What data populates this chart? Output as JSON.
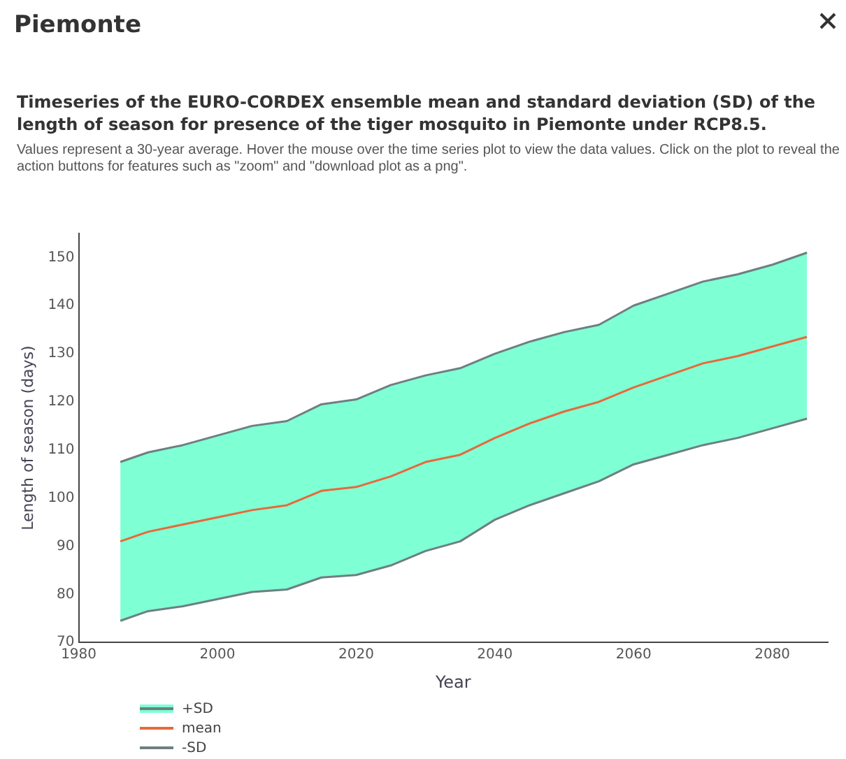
{
  "chart_data": {
    "type": "line",
    "title": "Timeseries of the EURO-CORDEX ensemble mean and standard deviation (SD) of the length of season for presence of the tiger mosquito in Piemonte under RCP8.5.",
    "subtitle": "Values represent a 30-year average. Hover the mouse over the time series plot to view the data values. Click on the plot to reveal the action buttons for features such as \"zoom\" and \"download plot as a png\".",
    "annotations": [
      "Piemonte"
    ],
    "xlabel": "Year",
    "ylabel": "Length of season (days)",
    "x": [
      1986,
      1990,
      1995,
      2000,
      2005,
      2010,
      2015,
      2020,
      2025,
      2030,
      2035,
      2040,
      2045,
      2050,
      2055,
      2060,
      2065,
      2070,
      2075,
      2080,
      2085
    ],
    "series": [
      {
        "name": "+SD",
        "type": "area",
        "color": "#7fffd4",
        "values": [
          107.5,
          109.5,
          111,
          113,
          115,
          116,
          119.5,
          120.5,
          123.5,
          125.5,
          127,
          130,
          132.5,
          134.5,
          136,
          140,
          142.5,
          145,
          146.5,
          148.5,
          151
        ]
      },
      {
        "name": "mean",
        "color": "#e8683a",
        "values": [
          91,
          93,
          94.5,
          96,
          97.5,
          98.5,
          101.5,
          102.3,
          104.5,
          107.5,
          109,
          112.5,
          115.5,
          118,
          120,
          123,
          125.5,
          128,
          129.5,
          131.5,
          133.5
        ]
      },
      {
        "name": "-SD",
        "color": "#6e7f80",
        "values": [
          74.5,
          76.5,
          77.5,
          79,
          80.5,
          81,
          83.5,
          84,
          86,
          89,
          91,
          95.5,
          98.5,
          101,
          103.5,
          107,
          109,
          111,
          112.5,
          114.5,
          116.5
        ]
      }
    ],
    "xlim": [
      1980,
      2088
    ],
    "xticks": [
      1980,
      2000,
      2020,
      2040,
      2060,
      2080
    ],
    "ylim": [
      70,
      155
    ],
    "yticks": [
      70,
      80,
      90,
      100,
      110,
      120,
      130,
      140,
      150
    ],
    "grid": false,
    "legend": "bottom left",
    "marker": "none",
    "line_style": "solid"
  }
}
